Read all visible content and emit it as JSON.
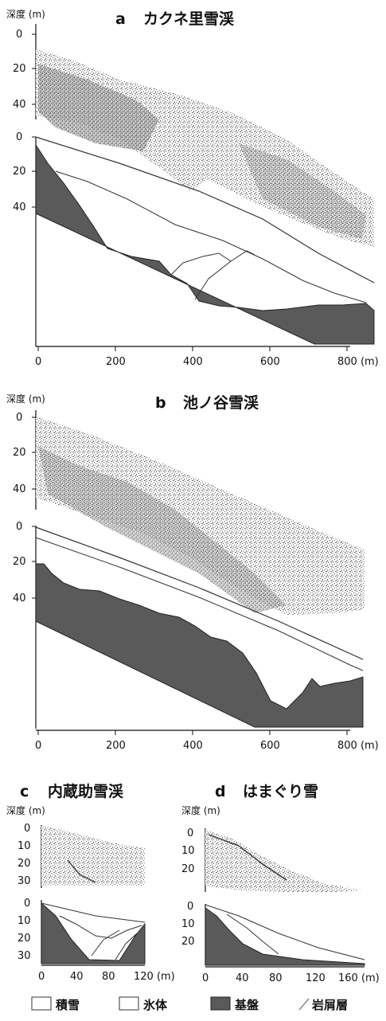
{
  "panels": [
    {
      "id": "a",
      "letter": "a",
      "name": "カクネ里雪渓",
      "depth_label": "深度 (m)",
      "depth_ticks": [
        "0",
        "20",
        "40"
      ],
      "distance_ticks": [
        "0",
        "200",
        "400",
        "600",
        "800 (m)"
      ]
    },
    {
      "id": "b",
      "letter": "b",
      "name": "池ノ谷雪渓",
      "depth_label": "深度 (m)",
      "depth_ticks": [
        "0",
        "20",
        "40"
      ],
      "distance_ticks": [
        "0",
        "200",
        "400",
        "600",
        "800 (m)"
      ]
    },
    {
      "id": "c",
      "letter": "c",
      "name": "内蔵助雪渓",
      "depth_label": "深度 (m)",
      "depth_ticks": [
        "0",
        "10",
        "20",
        "30"
      ],
      "distance_ticks": [
        "0",
        "40",
        "80",
        "120 (m)"
      ]
    },
    {
      "id": "d",
      "letter": "d",
      "name": "はまぐり雪",
      "depth_label": "深度 (m)",
      "depth_ticks": [
        "0",
        "10",
        "20"
      ],
      "distance_ticks": [
        "0",
        "40",
        "80",
        "120",
        "160 (m)"
      ]
    }
  ],
  "legend": {
    "snow": "積雪",
    "ice": "氷体",
    "bedrock": "基盤",
    "debris": "岩屑層"
  },
  "colors": {
    "bedrock": "#5a5a5a",
    "radar": "#8a8a8a",
    "line": "#333333"
  }
}
